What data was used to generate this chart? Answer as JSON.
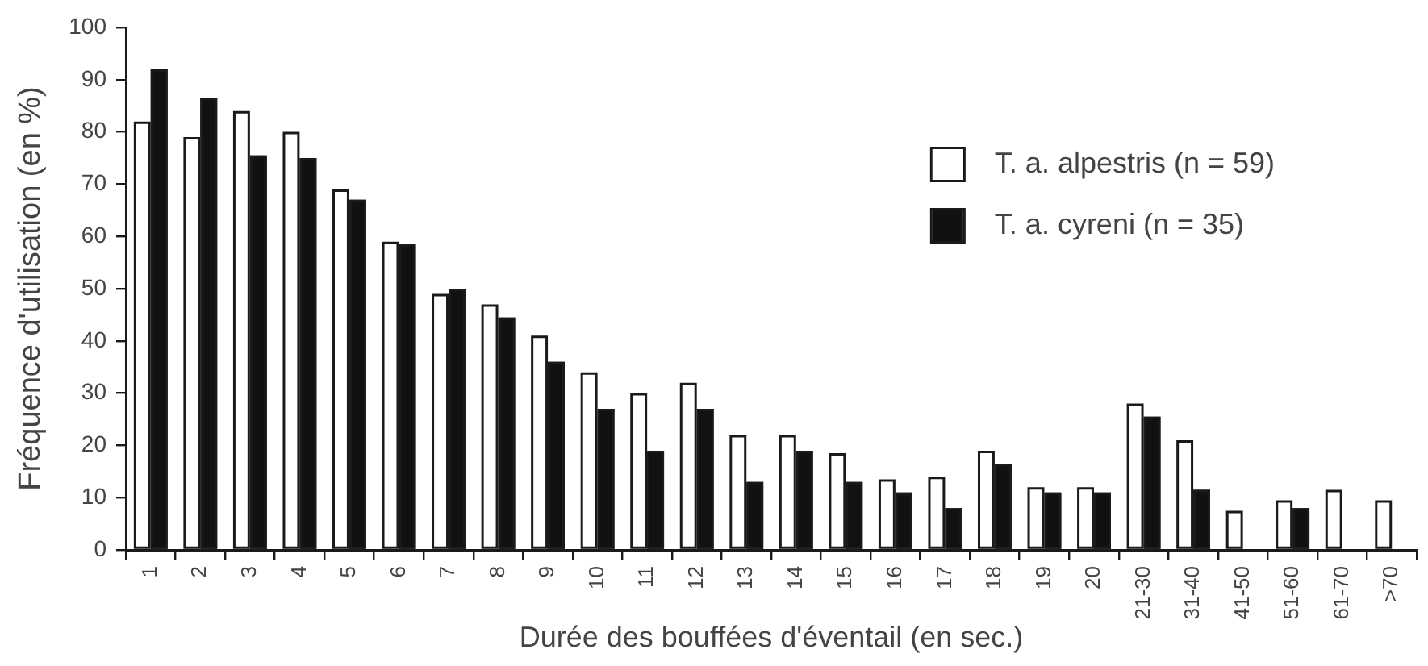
{
  "chart_data": {
    "type": "bar",
    "xlabel": "Durée des bouffées d'éventail (en sec.)",
    "ylabel": "Fréquence d'utilisation (en %)",
    "categories": [
      "1",
      "2",
      "3",
      "4",
      "5",
      "6",
      "7",
      "8",
      "9",
      "10",
      "11",
      "12",
      "13",
      "14",
      "15",
      "16",
      "17",
      "18",
      "19",
      "20",
      "21-30",
      "31-40",
      "41-50",
      "51-60",
      "61-70",
      ">70"
    ],
    "series": [
      {
        "name": "T. a. alpestris (n = 59)",
        "color": "#ffffff",
        "values": [
          82,
          79,
          84,
          80,
          69,
          59,
          49,
          47,
          41,
          34,
          30,
          32,
          22,
          22,
          18.5,
          13.5,
          14,
          19,
          12,
          12,
          28,
          21,
          7.5,
          9.5,
          11.5,
          9.5
        ]
      },
      {
        "name": "T. a. cyreni (n = 35)",
        "color": "#111111",
        "values": [
          92,
          86.5,
          75.5,
          75,
          67,
          58.5,
          50,
          44.5,
          36,
          27,
          19,
          27,
          13,
          19,
          13,
          11,
          8,
          16.5,
          11,
          11,
          25.5,
          11.5,
          0,
          8,
          0,
          0
        ]
      }
    ],
    "ylim": [
      0,
      100
    ],
    "yticks": [
      0,
      10,
      20,
      30,
      40,
      50,
      60,
      70,
      80,
      90,
      100
    ],
    "legend": "top right"
  }
}
